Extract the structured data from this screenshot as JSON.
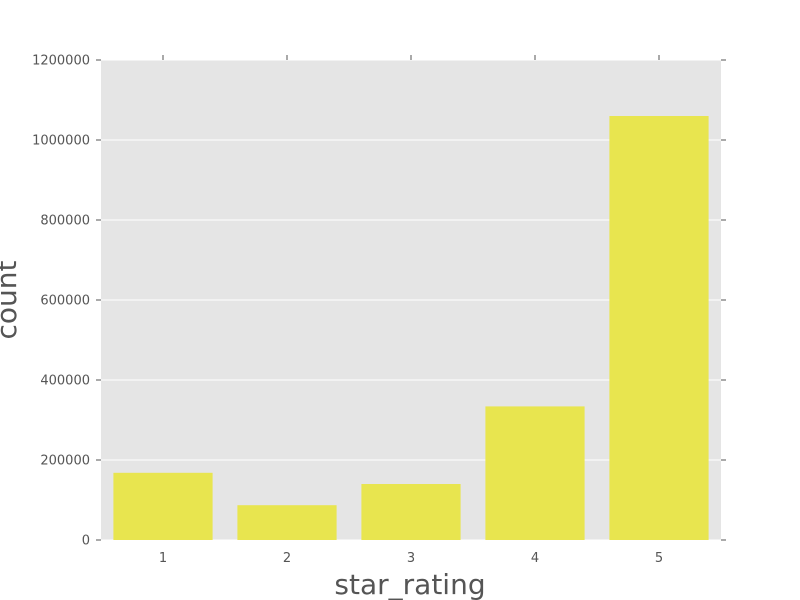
{
  "chart_data": {
    "type": "bar",
    "categories": [
      "1",
      "2",
      "3",
      "4",
      "5"
    ],
    "values": [
      168000,
      87000,
      140000,
      334000,
      1060000
    ],
    "xlabel": "star_rating",
    "ylabel": "count",
    "ylim": [
      0,
      1200000
    ],
    "yticks": [
      0,
      200000,
      400000,
      600000,
      800000,
      1000000,
      1200000
    ],
    "grid": true,
    "legend": "none",
    "colors": {
      "bar": "#e8e54f",
      "plot_background": "#e5e5e5",
      "grid": "#ffffff",
      "text": "#555555",
      "spine": "#ffffff"
    }
  }
}
